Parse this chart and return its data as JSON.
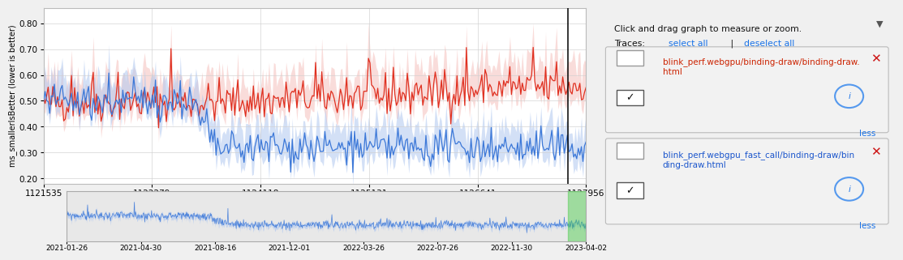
{
  "ylabel_main": "ms_smallerIsBetter (lower is better)",
  "x_ticks_main": [
    "1121535",
    "1122279",
    "1124118",
    "1125131",
    "1126641",
    "1127956"
  ],
  "x_dates": [
    "2021-01-26",
    "2021-04-30",
    "2021-08-16",
    "2021-12-01",
    "2022-03-26",
    "2022-07-26",
    "2022-11-30",
    "2023-04-02"
  ],
  "ylim_main": [
    0.18,
    0.86
  ],
  "yticks_main": [
    0.2,
    0.3,
    0.4,
    0.5,
    0.6,
    0.7,
    0.8
  ],
  "red_color": "#e03020",
  "red_fill": "#f5c0bc",
  "blue_color": "#3c78d8",
  "blue_fill": "#b0c8f0",
  "plot_bg": "#ffffff",
  "fig_bg": "#f0f0f0",
  "grid_color": "#d0d0d0",
  "vline_x": 0.967,
  "legend_title": "Click and drag graph to measure or zoom.",
  "legend_traces": "Traces:",
  "legend_select_all": "select all",
  "legend_deselect_all": "deselect all",
  "trace1_label_line1": "blink_perf.webgpu/binding-draw/binding-draw.",
  "trace1_label_line2": "html",
  "trace1_color": "#cc2200",
  "trace2_label_line1": "blink_perf.webgpu_fast_call/binding-draw/bin",
  "trace2_label_line2": "ding-draw.html",
  "trace2_color": "#1a55cc",
  "minimap_fill": "#b0c8f0",
  "minimap_line": "#3c78d8",
  "minimap_bg": "#e8e8e8",
  "highlight_green": "#44cc44",
  "panel_bg": "#ffffff",
  "panel_border": "#cccccc"
}
